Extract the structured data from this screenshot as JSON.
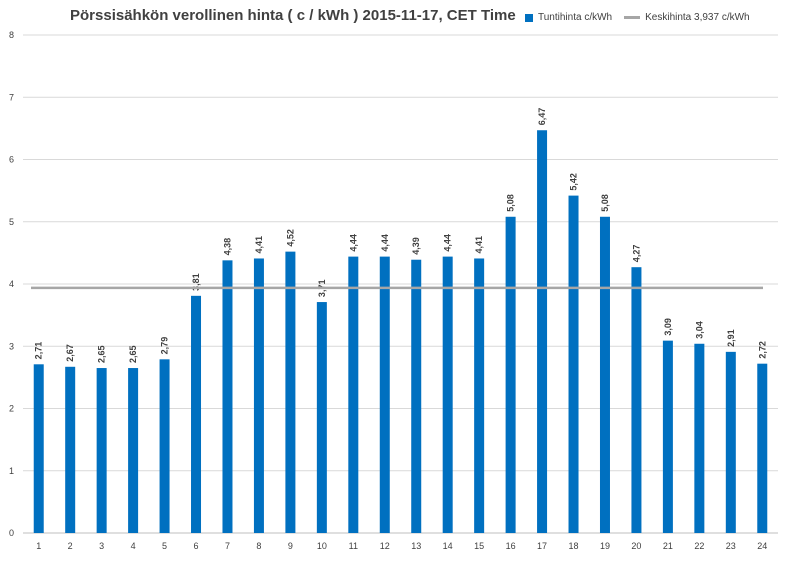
{
  "chart_data": {
    "type": "bar",
    "title": "Pörssisähkön verollinen hinta ( c / kWh ) 2015-11-17, CET Time",
    "categories": [
      "1",
      "2",
      "3",
      "4",
      "5",
      "6",
      "7",
      "8",
      "9",
      "10",
      "11",
      "12",
      "13",
      "14",
      "15",
      "16",
      "17",
      "18",
      "19",
      "20",
      "21",
      "22",
      "23",
      "24"
    ],
    "series": [
      {
        "name": "Tuntihinta c/kWh",
        "type": "bar",
        "color": "#0070C0",
        "values": [
          2.71,
          2.67,
          2.65,
          2.65,
          2.79,
          3.81,
          4.38,
          4.41,
          4.52,
          3.71,
          4.44,
          4.44,
          4.39,
          4.44,
          4.41,
          5.08,
          6.47,
          5.42,
          5.08,
          4.27,
          3.09,
          3.04,
          2.91,
          2.72
        ],
        "labels": [
          "2,71",
          "2,67",
          "2,65",
          "2,65",
          "2,79",
          "3,81",
          "4,38",
          "4,41",
          "4,52",
          "3,71",
          "4,44",
          "4,44",
          "4,39",
          "4,44",
          "4,41",
          "5,08",
          "6,47",
          "5,42",
          "5,08",
          "4,27",
          "3,09",
          "3,04",
          "2,91",
          "2,72"
        ]
      },
      {
        "name": "Keskihinta 3,937 c/kWh",
        "type": "line",
        "color": "#A6A6A6",
        "value": 3.937
      }
    ],
    "ylim": [
      0,
      8
    ],
    "yticks": [
      "0",
      "1",
      "2",
      "3",
      "4",
      "5",
      "6",
      "7",
      "8"
    ],
    "grid": true,
    "legend_position": "top-right"
  }
}
